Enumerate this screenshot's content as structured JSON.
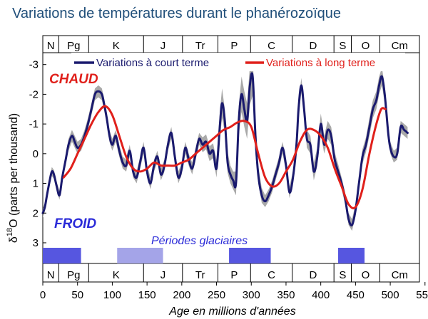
{
  "title": "Variations de températures durant le phanérozoïque",
  "chart_data": {
    "type": "line",
    "title": "Variations de températures durant le phanérozoïque",
    "xlabel": "Age en millions d'années",
    "ylabel_pre": "δ",
    "ylabel_sup": "18",
    "ylabel_post": "O (parts per thousand)",
    "xlim": [
      0,
      542
    ],
    "ylim": [
      3.6,
      -3.4
    ],
    "y_inverted": true,
    "x_ticks": [
      0,
      50,
      100,
      150,
      200,
      250,
      300,
      350,
      400,
      450,
      500,
      550
    ],
    "y_ticks": [
      -3,
      -2,
      -1,
      0,
      1,
      2,
      3
    ],
    "y_tick_labels": [
      "-3",
      "-2",
      "-1",
      "0",
      "1",
      "2",
      "3"
    ],
    "hot_label": "CHAUD",
    "cold_label": "FROID",
    "glacial_label": "Périodes glaciaires",
    "periods": [
      {
        "label": "N",
        "start": 0,
        "end": 23
      },
      {
        "label": "Pg",
        "start": 23,
        "end": 66
      },
      {
        "label": "K",
        "start": 66,
        "end": 145
      },
      {
        "label": "J",
        "start": 145,
        "end": 201
      },
      {
        "label": "Tr",
        "start": 201,
        "end": 252
      },
      {
        "label": "P",
        "start": 252,
        "end": 299
      },
      {
        "label": "C",
        "start": 299,
        "end": 359
      },
      {
        "label": "D",
        "start": 359,
        "end": 419
      },
      {
        "label": "S",
        "start": 419,
        "end": 444
      },
      {
        "label": "O",
        "start": 444,
        "end": 485
      },
      {
        "label": "Cm",
        "start": 485,
        "end": 542
      }
    ],
    "glacial_periods": [
      {
        "start": 0,
        "end": 55,
        "color": "#5656e0"
      },
      {
        "start": 107,
        "end": 173,
        "color": "#a4a4e8"
      },
      {
        "start": 268,
        "end": 328,
        "color": "#5656e0"
      },
      {
        "start": 425,
        "end": 463,
        "color": "#5656e0"
      }
    ],
    "series": [
      {
        "name": "Variations à court terme",
        "color": "#1a1a6e",
        "x": [
          0,
          3,
          6,
          10,
          13,
          16,
          20,
          24,
          28,
          33,
          37,
          42,
          46,
          50,
          55,
          60,
          65,
          70,
          75,
          80,
          85,
          88,
          92,
          96,
          100,
          105,
          110,
          115,
          120,
          125,
          130,
          135,
          140,
          145,
          150,
          155,
          160,
          165,
          170,
          175,
          180,
          185,
          190,
          195,
          200,
          205,
          210,
          215,
          220,
          225,
          230,
          235,
          240,
          245,
          250,
          255,
          258,
          262,
          266,
          270,
          274,
          278,
          282,
          286,
          290,
          294,
          298,
          302,
          306,
          310,
          315,
          320,
          325,
          330,
          335,
          340,
          345,
          350,
          355,
          360,
          365,
          368,
          372,
          376,
          380,
          385,
          390,
          395,
          400,
          405,
          410,
          415,
          420,
          425,
          430,
          435,
          440,
          445,
          450,
          455,
          460,
          465,
          470,
          475,
          480,
          484,
          488,
          492,
          497,
          500,
          505,
          510,
          515,
          520,
          525
        ],
        "y": [
          2.0,
          1.8,
          1.4,
          0.9,
          0.6,
          0.7,
          1.1,
          1.4,
          0.8,
          0.2,
          -0.3,
          -0.6,
          -0.4,
          -0.2,
          -0.3,
          -0.6,
          -1.0,
          -1.5,
          -2.0,
          -2.1,
          -2.0,
          -1.7,
          -1.2,
          -0.6,
          -0.3,
          -0.6,
          -0.1,
          0.3,
          0.4,
          -0.1,
          0.6,
          0.8,
          0.3,
          -0.2,
          0.6,
          1.0,
          0.4,
          0.1,
          0.7,
          0.4,
          -0.3,
          -0.7,
          0.1,
          0.8,
          0.5,
          -0.2,
          0.2,
          0.5,
          0.0,
          -0.5,
          -0.3,
          -0.4,
          0.0,
          -0.1,
          0.5,
          -1.0,
          -1.7,
          -1.1,
          0.3,
          0.7,
          0.9,
          1.0,
          -1.1,
          -2.0,
          -1.5,
          -1.1,
          -2.3,
          -2.6,
          -0.6,
          0.7,
          1.4,
          1.6,
          1.4,
          1.1,
          0.7,
          0.3,
          -0.2,
          0.4,
          1.3,
          0.8,
          -0.3,
          -1.5,
          -2.3,
          -1.5,
          -0.5,
          -0.3,
          0.6,
          0.1,
          -1.0,
          -0.3,
          -0.8,
          -0.6,
          0.2,
          0.6,
          1.0,
          1.5,
          2.2,
          2.4,
          1.9,
          1.0,
          0.1,
          -0.3,
          -0.9,
          -1.5,
          -1.8,
          -2.3,
          -2.6,
          -2.0,
          -0.7,
          -0.2,
          0.1,
          0.0,
          -0.9,
          -0.8,
          -0.7
        ],
        "band_offsets": [
          0.15,
          0.15,
          0.15,
          0.15,
          0.15,
          0.15,
          0.15,
          0.15,
          0.15,
          0.15,
          0.2,
          0.2,
          0.2,
          0.2,
          0.2,
          0.2,
          0.2,
          0.2,
          0.2,
          0.2,
          0.2,
          0.2,
          0.2,
          0.2,
          0.2,
          0.2,
          0.2,
          0.2,
          0.2,
          0.2,
          0.2,
          0.2,
          0.2,
          0.2,
          0.2,
          0.2,
          0.2,
          0.2,
          0.2,
          0.2,
          0.2,
          0.2,
          0.2,
          0.2,
          0.2,
          0.2,
          0.2,
          0.2,
          0.2,
          0.2,
          0.25,
          0.25,
          0.25,
          0.25,
          0.3,
          0.45,
          0.5,
          0.4,
          0.35,
          0.3,
          0.3,
          0.4,
          0.5,
          0.6,
          0.6,
          0.6,
          0.65,
          0.65,
          0.6,
          0.3,
          0.25,
          0.2,
          0.2,
          0.2,
          0.2,
          0.2,
          0.2,
          0.2,
          0.2,
          0.2,
          0.2,
          0.25,
          0.25,
          0.25,
          0.3,
          0.3,
          0.3,
          0.3,
          0.35,
          0.3,
          0.3,
          0.3,
          0.25,
          0.25,
          0.2,
          0.2,
          0.2,
          0.2,
          0.2,
          0.2,
          0.25,
          0.25,
          0.3,
          0.3,
          0.3,
          0.3,
          0.3,
          0.3,
          0.2,
          0.2,
          0.2,
          0.2,
          0.2,
          0.2,
          0.2
        ]
      },
      {
        "name": "Variations à long terme",
        "color": "#e0201b",
        "x": [
          30,
          40,
          50,
          60,
          70,
          80,
          90,
          100,
          110,
          120,
          130,
          140,
          150,
          160,
          170,
          180,
          190,
          200,
          210,
          220,
          230,
          240,
          250,
          260,
          270,
          280,
          290,
          300,
          310,
          320,
          330,
          340,
          350,
          360,
          370,
          380,
          390,
          400,
          410,
          420,
          430,
          440,
          450,
          460,
          470,
          480,
          487,
          493
        ],
        "y": [
          0.8,
          0.5,
          0.0,
          -0.5,
          -1.0,
          -1.4,
          -1.6,
          -1.3,
          -0.6,
          0.1,
          0.5,
          0.6,
          0.5,
          0.3,
          0.4,
          0.4,
          0.4,
          0.3,
          0.2,
          0.0,
          -0.2,
          -0.4,
          -0.6,
          -0.8,
          -0.9,
          -1.05,
          -1.1,
          -0.9,
          0.0,
          0.8,
          1.1,
          1.0,
          0.6,
          0.2,
          -0.4,
          -0.8,
          -0.8,
          -0.6,
          -0.2,
          0.5,
          1.1,
          1.7,
          1.8,
          1.2,
          0.0,
          -1.0,
          -1.5,
          -1.5
        ]
      }
    ]
  },
  "colors": {
    "band": "#a9a9a9",
    "axis": "#000000"
  }
}
